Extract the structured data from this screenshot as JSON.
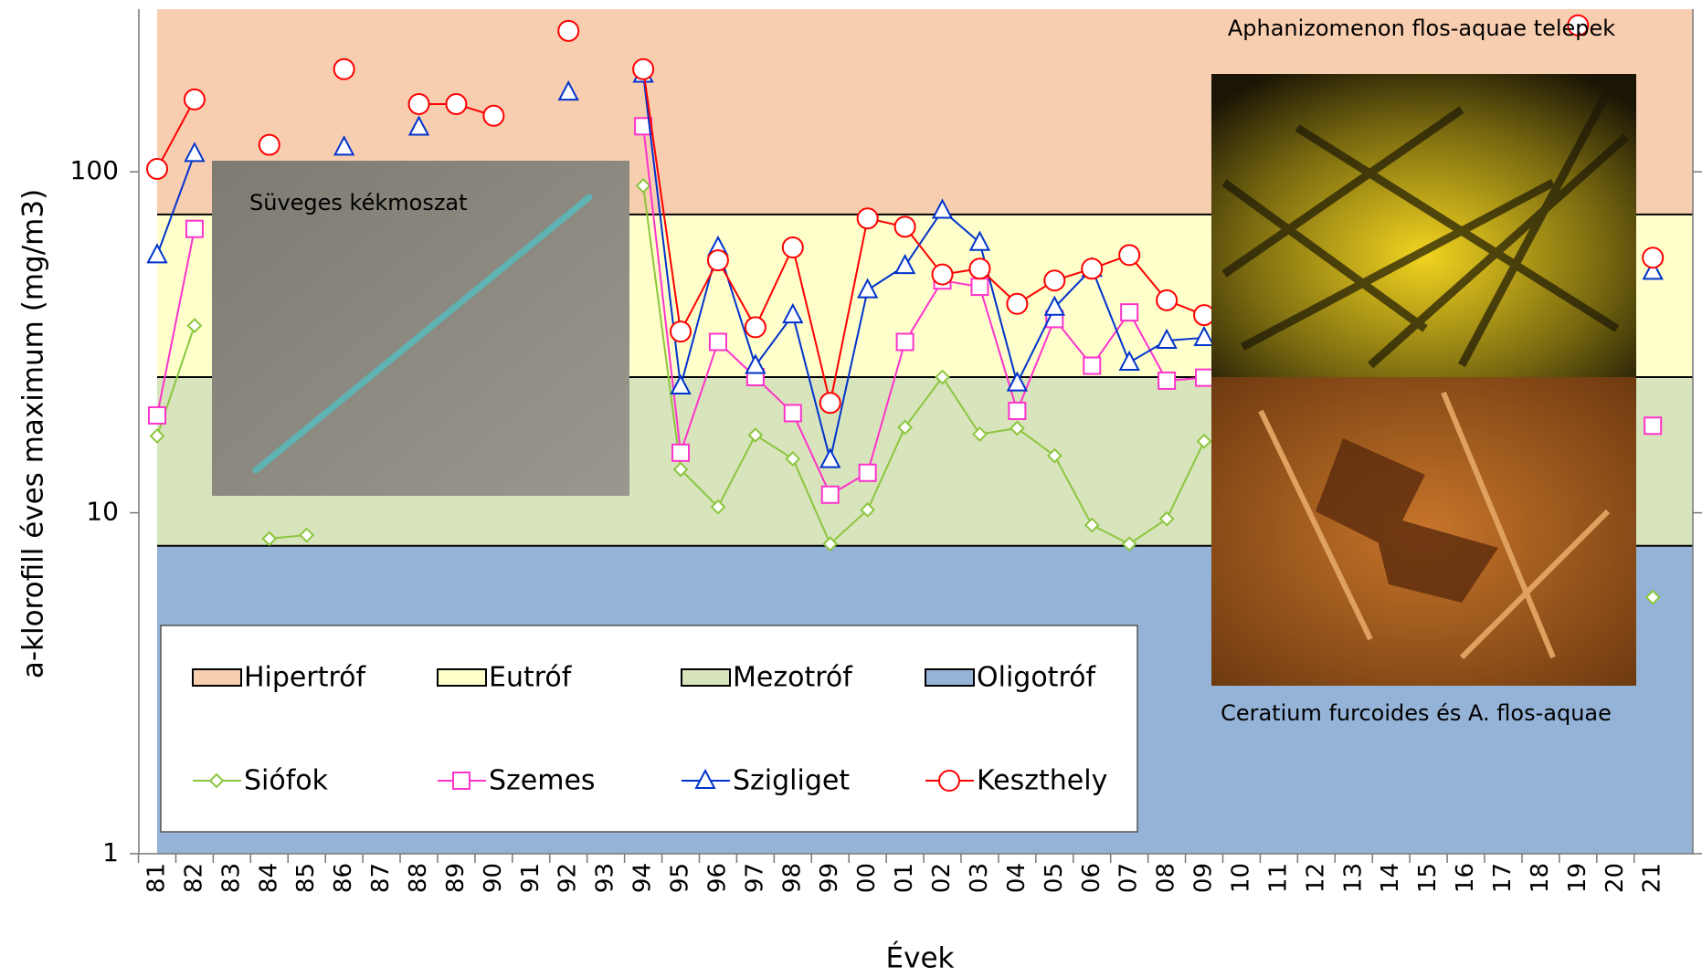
{
  "chart_data": {
    "type": "line",
    "y_label": "a-klorofill éves maximum (mg/m3)",
    "x_label": "Évek",
    "log_scale": true,
    "ylim": [
      1,
      300
    ],
    "yticks": [
      1,
      10,
      100
    ],
    "categories": [
      "81",
      "82",
      "83",
      "84",
      "85",
      "86",
      "87",
      "88",
      "89",
      "90",
      "91",
      "92",
      "93",
      "94",
      "95",
      "96",
      "97",
      "98",
      "99",
      "00",
      "01",
      "02",
      "03",
      "04",
      "05",
      "06",
      "07",
      "08",
      "09",
      "10",
      "11",
      "12",
      "13",
      "14",
      "15",
      "16",
      "17",
      "18",
      "19",
      "20",
      "21"
    ],
    "bands": [
      {
        "name": "Hipertróf",
        "color": "#f8ceb0",
        "range": [
          75,
          300
        ]
      },
      {
        "name": "Eutróf",
        "color": "#ffffcc",
        "range": [
          25,
          75
        ]
      },
      {
        "name": "Mezotróf",
        "color": "#d8e4bc",
        "range": [
          8,
          25
        ]
      },
      {
        "name": "Oligotróf",
        "color": "#95b3d7",
        "range": [
          1,
          8
        ]
      }
    ],
    "series": [
      {
        "name": "Siófok",
        "color": "#8cc63f",
        "marker": "diamond",
        "values": [
          16.8,
          35.4,
          null,
          8.4,
          8.6,
          null,
          null,
          null,
          null,
          null,
          null,
          null,
          null,
          91,
          13.4,
          10.4,
          16.9,
          14.4,
          8.1,
          10.2,
          17.8,
          25,
          17,
          17.7,
          14.7,
          9.2,
          8.1,
          9.6,
          16.2,
          null,
          null,
          null,
          null,
          null,
          null,
          null,
          null,
          null,
          null,
          null,
          5.65
        ]
      },
      {
        "name": "Szemes",
        "color": "#ff33cc",
        "marker": "square",
        "values": [
          19.3,
          68,
          null,
          null,
          null,
          null,
          null,
          null,
          null,
          null,
          null,
          null,
          null,
          136,
          15,
          31.7,
          25,
          19.6,
          11.3,
          13.1,
          31.7,
          48,
          46,
          19.9,
          37,
          27,
          38.7,
          24.4,
          24.9,
          null,
          null,
          null,
          null,
          null,
          null,
          null,
          null,
          null,
          null,
          null,
          18
        ]
      },
      {
        "name": "Szigliget",
        "color": "#0033cc",
        "marker": "triangle",
        "values": [
          57,
          113,
          null,
          null,
          null,
          118,
          null,
          135,
          null,
          null,
          null,
          171,
          null,
          193,
          23.5,
          60,
          27,
          38,
          14.3,
          45,
          53,
          77,
          62,
          24,
          40,
          52,
          27.6,
          32,
          32.6,
          null,
          null,
          null,
          null,
          null,
          null,
          null,
          null,
          null,
          null,
          null,
          51
        ]
      },
      {
        "name": "Keszthely",
        "color": "#ff0000",
        "marker": "circle",
        "values": [
          102,
          163,
          null,
          120,
          null,
          200,
          null,
          158,
          158,
          146,
          null,
          259,
          null,
          200,
          34,
          55,
          35,
          60,
          21,
          73,
          69,
          50,
          52,
          41,
          48,
          52,
          57,
          42,
          38,
          null,
          null,
          null,
          null,
          null,
          null,
          null,
          null,
          null,
          269,
          null,
          56
        ]
      }
    ],
    "photos": [
      {
        "caption": "Süveges kékmoszat"
      },
      {
        "caption": "Aphanizomenon flos-aquae telepek"
      },
      {
        "caption": "Ceratium furcoides és A. flos-aquae"
      }
    ]
  }
}
